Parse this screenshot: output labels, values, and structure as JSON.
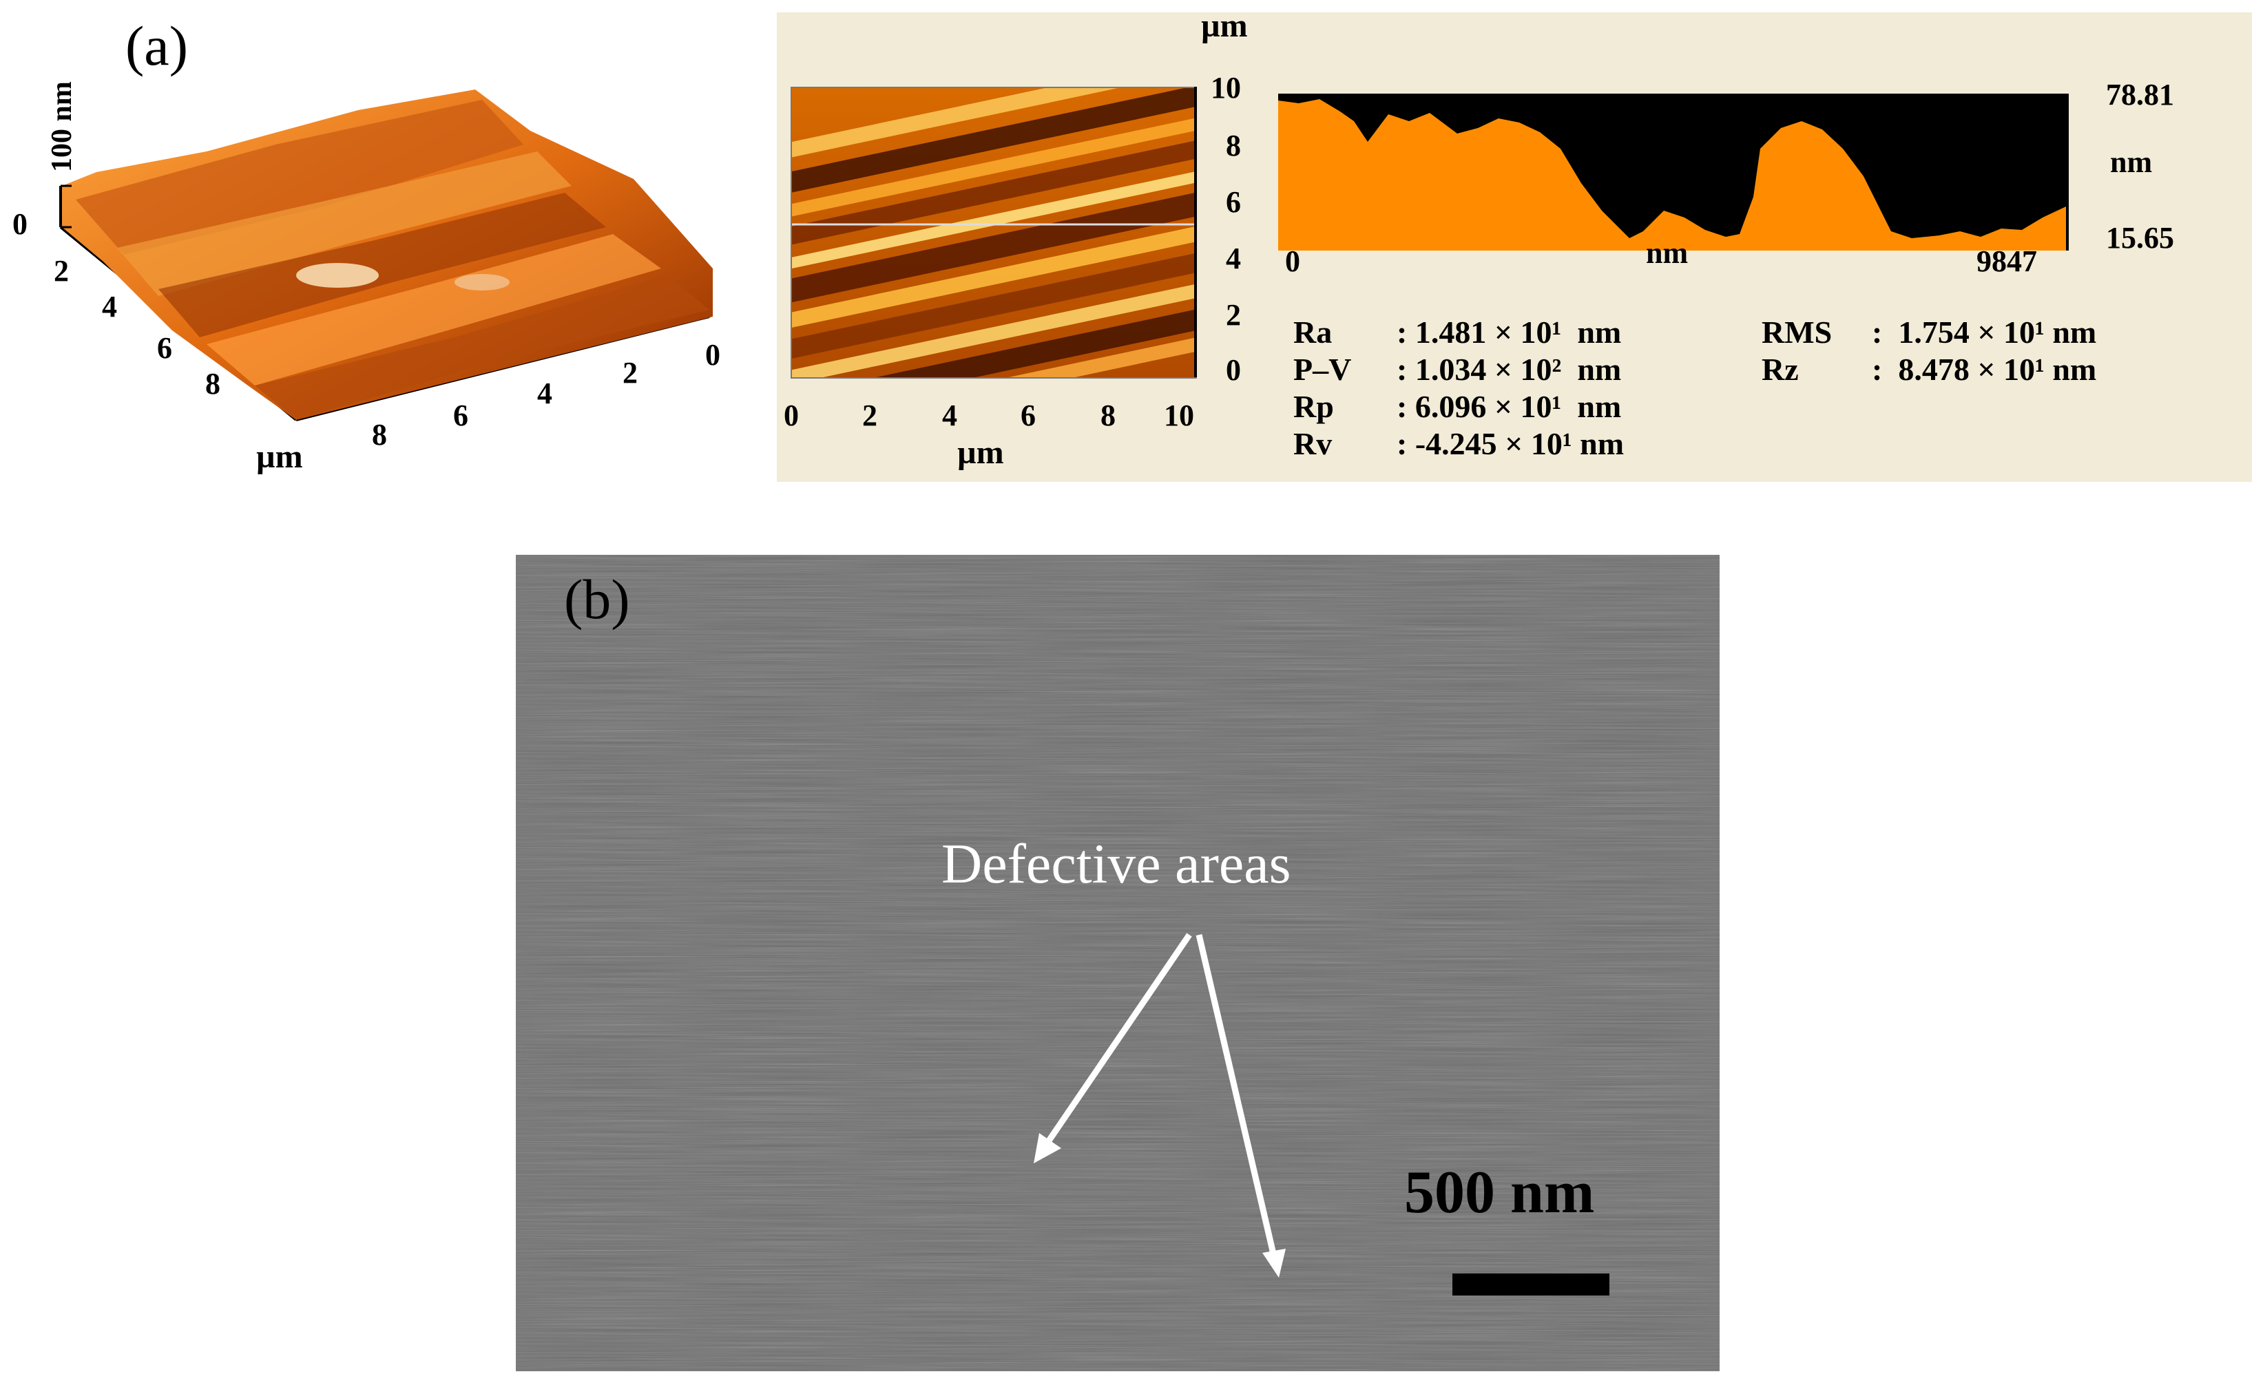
{
  "panel_a": {
    "label": "(a)",
    "surface3d": {
      "z_axis_label": "100 nm",
      "z_zero_label": "0",
      "depth_ticks": [
        "2",
        "4",
        "6",
        "8"
      ],
      "width_ticks": [
        "8",
        "6",
        "4",
        "2",
        "0"
      ],
      "unit": "µm"
    },
    "height_map": {
      "top_unit": "µm",
      "bottom_unit": "µm",
      "x_ticks": [
        "0",
        "2",
        "4",
        "6",
        "8",
        "10"
      ],
      "y_ticks": [
        "10",
        "8",
        "6",
        "4",
        "2",
        "0"
      ]
    },
    "profile": {
      "x_start": "0",
      "x_end": "9847",
      "x_unit": "nm",
      "y_top": "78.81",
      "y_bottom": "15.65",
      "y_unit": "nm"
    },
    "roughness": [
      {
        "name": "Ra",
        "value": ": 1.481 × 10¹  nm"
      },
      {
        "name": "P–V",
        "value": ": 1.034 × 10²  nm"
      },
      {
        "name": "Rp",
        "value": ": 6.096 × 10¹  nm"
      },
      {
        "name": "Rv",
        "value": ": -4.245 × 10¹ nm"
      },
      {
        "name": "RMS",
        "value": ":  1.754 × 10¹ nm"
      },
      {
        "name": "Rz",
        "value": ":  8.478 × 10¹ nm"
      }
    ]
  },
  "panel_b": {
    "label": "(b)",
    "annotation": "Defective areas",
    "scale_label": "500 nm"
  },
  "colors": {
    "afm_orange": "#ff8c00",
    "afm_dark": "#000000",
    "afm_box_bg": "#f1ebd7",
    "sem_gray": "#6c6c6c"
  }
}
